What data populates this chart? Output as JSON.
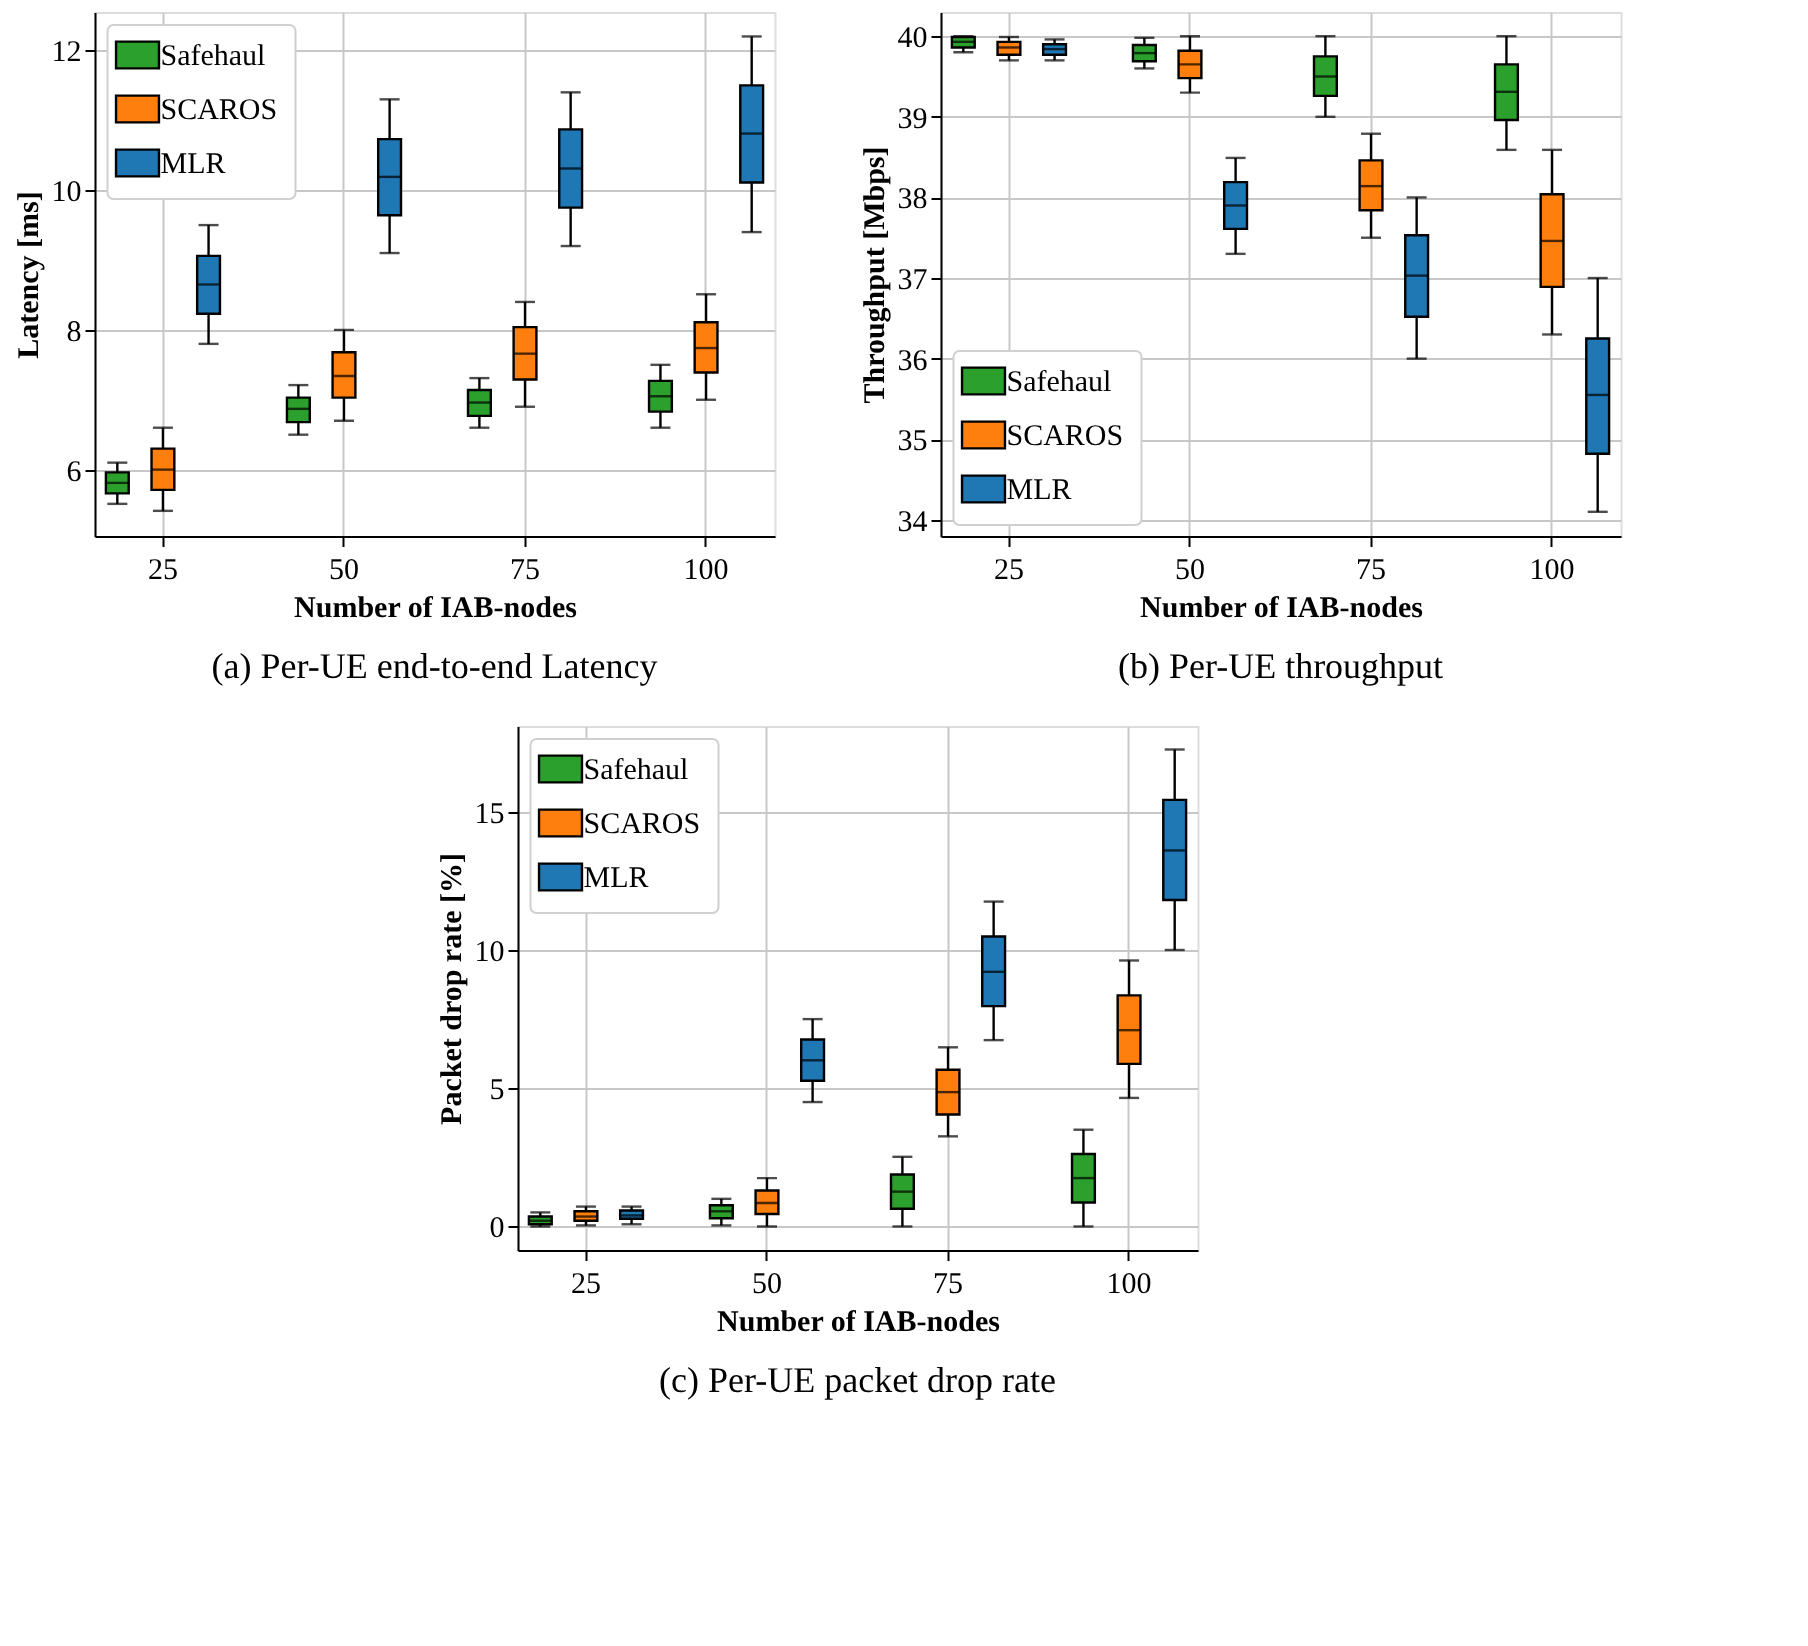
{
  "chart_data": [
    {
      "type": "box",
      "title": "(a) Per-UE end-to-end Latency",
      "xlabel": "Number of IAB-nodes",
      "ylabel": "Latency [ms]",
      "categories": [
        "25",
        "50",
        "75",
        "100"
      ],
      "ylim": [
        5.05,
        12.55
      ],
      "yticks": [
        6,
        8,
        10,
        12
      ],
      "grid": true,
      "legend": "top left",
      "series": [
        {
          "name": "Safehaul",
          "color": "#2ca02c",
          "boxes": [
            {
              "low": 5.51,
              "q1": 5.66,
              "median": 5.81,
              "q3": 5.96,
              "high": 6.1
            },
            {
              "low": 6.5,
              "q1": 6.68,
              "median": 6.87,
              "q3": 7.03,
              "high": 7.21
            },
            {
              "low": 6.6,
              "q1": 6.77,
              "median": 6.96,
              "q3": 7.14,
              "high": 7.31
            },
            {
              "low": 6.6,
              "q1": 6.83,
              "median": 7.05,
              "q3": 7.27,
              "high": 7.5
            }
          ]
        },
        {
          "name": "SCAROS",
          "color": "#ff7f0e",
          "boxes": [
            {
              "low": 5.41,
              "q1": 5.71,
              "median": 6.0,
              "q3": 6.3,
              "high": 6.6
            },
            {
              "low": 6.7,
              "q1": 7.03,
              "median": 7.34,
              "q3": 7.68,
              "high": 8.0
            },
            {
              "low": 6.9,
              "q1": 7.29,
              "median": 7.66,
              "q3": 8.04,
              "high": 8.4
            },
            {
              "low": 7.0,
              "q1": 7.39,
              "median": 7.74,
              "q3": 8.11,
              "high": 8.51
            }
          ]
        },
        {
          "name": "MLR",
          "color": "#1f77b4",
          "boxes": [
            {
              "low": 7.8,
              "q1": 8.23,
              "median": 8.65,
              "q3": 9.06,
              "high": 9.5
            },
            {
              "low": 9.1,
              "q1": 9.64,
              "median": 10.19,
              "q3": 10.73,
              "high": 11.3
            },
            {
              "low": 9.2,
              "q1": 9.75,
              "median": 10.31,
              "q3": 10.87,
              "high": 11.4
            },
            {
              "low": 9.4,
              "q1": 10.11,
              "median": 10.81,
              "q3": 11.5,
              "high": 12.2
            }
          ]
        }
      ]
    },
    {
      "type": "box",
      "title": "(b) Per-UE throughput",
      "xlabel": "Number of IAB-nodes",
      "ylabel": "Throughput [Mbps]",
      "categories": [
        "25",
        "50",
        "75",
        "100"
      ],
      "ylim": [
        33.8,
        40.3
      ],
      "yticks": [
        34,
        35,
        36,
        37,
        38,
        39,
        40
      ],
      "grid": true,
      "legend": "bottom left",
      "series": [
        {
          "name": "Safehaul",
          "color": "#2ca02c",
          "boxes": [
            {
              "low": 39.8,
              "q1": 39.86,
              "median": 39.93,
              "q3": 39.99,
              "high": 40.0
            },
            {
              "low": 39.6,
              "q1": 39.69,
              "median": 39.79,
              "q3": 39.89,
              "high": 39.98
            },
            {
              "low": 39.0,
              "q1": 39.26,
              "median": 39.5,
              "q3": 39.75,
              "high": 40.0
            },
            {
              "low": 38.59,
              "q1": 38.96,
              "median": 39.31,
              "q3": 39.65,
              "high": 40.0
            }
          ]
        },
        {
          "name": "SCAROS",
          "color": "#ff7f0e",
          "boxes": [
            {
              "low": 39.7,
              "q1": 39.77,
              "median": 39.86,
              "q3": 39.93,
              "high": 39.99
            },
            {
              "low": 39.3,
              "q1": 39.48,
              "median": 39.65,
              "q3": 39.82,
              "high": 40.0
            },
            {
              "low": 37.5,
              "q1": 37.84,
              "median": 38.14,
              "q3": 38.46,
              "high": 38.79
            },
            {
              "low": 36.3,
              "q1": 36.89,
              "median": 37.46,
              "q3": 38.04,
              "high": 38.59
            }
          ]
        },
        {
          "name": "MLR",
          "color": "#1f77b4",
          "boxes": [
            {
              "low": 39.7,
              "q1": 39.77,
              "median": 39.84,
              "q3": 39.9,
              "high": 39.96
            },
            {
              "low": 37.3,
              "q1": 37.61,
              "median": 37.9,
              "q3": 38.19,
              "high": 38.49
            },
            {
              "low": 36.0,
              "q1": 36.52,
              "median": 37.03,
              "q3": 37.53,
              "high": 38.0
            },
            {
              "low": 34.1,
              "q1": 34.82,
              "median": 35.55,
              "q3": 36.25,
              "high": 37.0
            }
          ]
        }
      ]
    },
    {
      "type": "box",
      "title": "(c) Per-UE packet drop rate",
      "xlabel": "Number of IAB-nodes",
      "ylabel": "Packet drop rate [%]",
      "categories": [
        "25",
        "50",
        "75",
        "100"
      ],
      "ylim": [
        -0.85,
        18.1
      ],
      "yticks": [
        0,
        5,
        10,
        15
      ],
      "grid": true,
      "legend": "top left",
      "series": [
        {
          "name": "Safehaul",
          "color": "#2ca02c",
          "boxes": [
            {
              "low": 0.0,
              "q1": 0.08,
              "median": 0.21,
              "q3": 0.36,
              "high": 0.51
            },
            {
              "low": 0.04,
              "q1": 0.3,
              "median": 0.55,
              "q3": 0.77,
              "high": 1.0
            },
            {
              "low": 0.0,
              "q1": 0.64,
              "median": 1.26,
              "q3": 1.88,
              "high": 2.52
            },
            {
              "low": 0.0,
              "q1": 0.87,
              "median": 1.75,
              "q3": 2.62,
              "high": 3.5
            }
          ]
        },
        {
          "name": "SCAROS",
          "color": "#ff7f0e",
          "boxes": [
            {
              "low": 0.04,
              "q1": 0.21,
              "median": 0.36,
              "q3": 0.55,
              "high": 0.72
            },
            {
              "low": 0.0,
              "q1": 0.45,
              "median": 0.85,
              "q3": 1.3,
              "high": 1.75
            },
            {
              "low": 3.26,
              "q1": 4.05,
              "median": 4.86,
              "q3": 5.67,
              "high": 6.48
            },
            {
              "low": 4.65,
              "q1": 5.88,
              "median": 7.1,
              "q3": 8.36,
              "high": 9.62
            }
          ]
        },
        {
          "name": "MLR",
          "color": "#1f77b4",
          "boxes": [
            {
              "low": 0.08,
              "q1": 0.28,
              "median": 0.4,
              "q3": 0.58,
              "high": 0.72
            },
            {
              "low": 4.5,
              "q1": 5.27,
              "median": 6.01,
              "q3": 6.76,
              "high": 7.5
            },
            {
              "low": 6.74,
              "q1": 7.97,
              "median": 9.21,
              "q3": 10.49,
              "high": 11.75
            },
            {
              "low": 10.0,
              "q1": 11.81,
              "median": 13.6,
              "q3": 15.43,
              "high": 17.25
            }
          ]
        }
      ]
    }
  ]
}
